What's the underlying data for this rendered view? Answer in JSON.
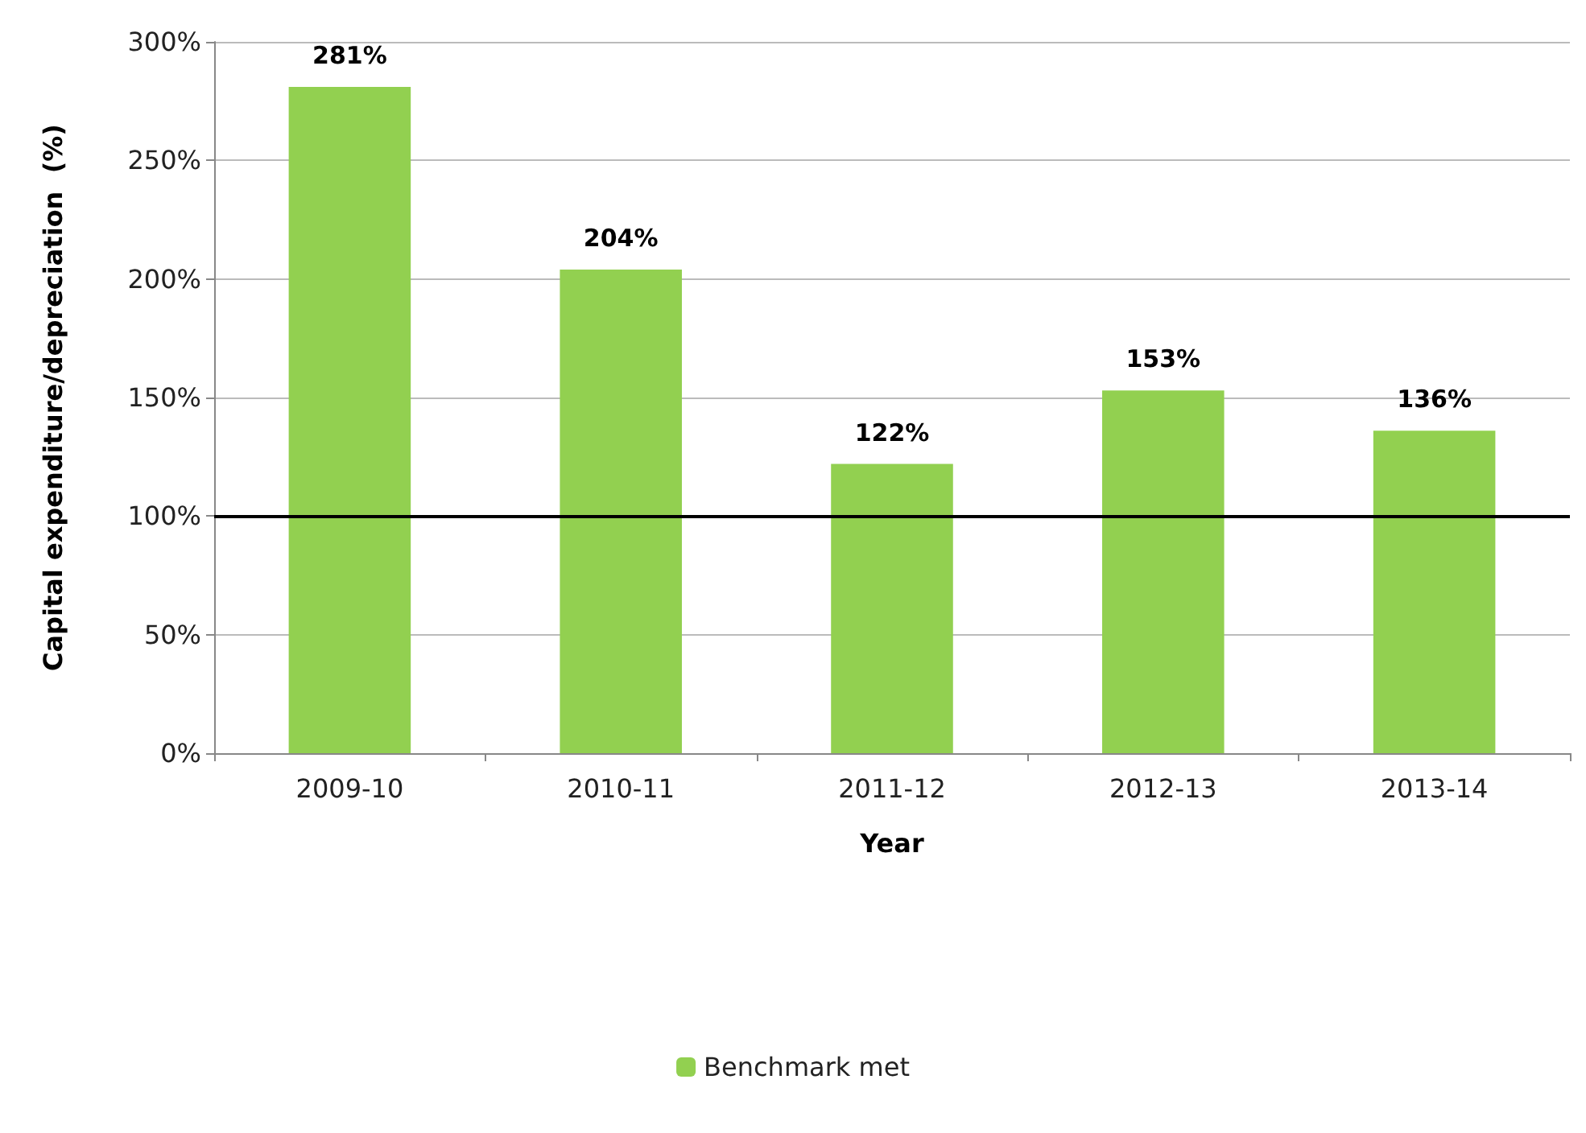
{
  "chart_data": {
    "type": "bar",
    "xlabel": "Year",
    "ylabel": "Capital expenditure/depreciation  (%)",
    "categories": [
      "2009-10",
      "2010-11",
      "2011-12",
      "2012-13",
      "2013-14"
    ],
    "series": [
      {
        "name": "Benchmark met",
        "color": "#92d050",
        "values": [
          281,
          204,
          122,
          153,
          136
        ],
        "value_labels": [
          "281%",
          "204%",
          "122%",
          "153%",
          "136%"
        ]
      }
    ],
    "ylim": [
      0,
      300
    ],
    "yticks": [
      {
        "value": 0,
        "label": "0%"
      },
      {
        "value": 50,
        "label": "50%"
      },
      {
        "value": 100,
        "label": "100%"
      },
      {
        "value": 150,
        "label": "150%"
      },
      {
        "value": 200,
        "label": "200%"
      },
      {
        "value": 250,
        "label": "250%"
      },
      {
        "value": 300,
        "label": "300%"
      }
    ],
    "ref_lines": [
      {
        "axis": "y",
        "value": 100,
        "label": null,
        "color": "#000000"
      }
    ],
    "grid": "y",
    "legend": "bottom"
  }
}
